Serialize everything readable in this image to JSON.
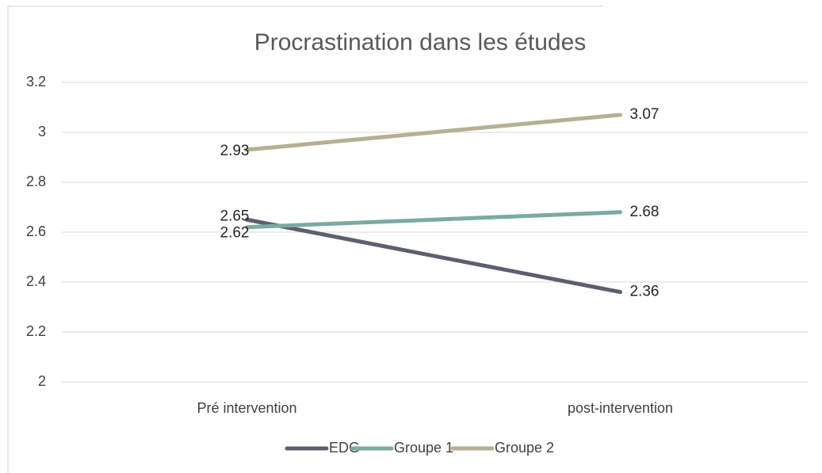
{
  "chart_data": {
    "type": "line",
    "title": "Procrastination dans les études",
    "categories": [
      "Pré intervention",
      "post-intervention"
    ],
    "series": [
      {
        "name": "EDG",
        "color": "#5d5f70",
        "values": [
          2.65,
          2.36
        ]
      },
      {
        "name": "Groupe 1",
        "color": "#7aaaa3",
        "values": [
          2.62,
          2.68
        ]
      },
      {
        "name": "Groupe 2",
        "color": "#b6af93",
        "values": [
          2.93,
          3.07
        ]
      }
    ],
    "ylim": [
      2,
      3.2
    ],
    "yticks": [
      2,
      2.2,
      2.4,
      2.6,
      2.8,
      3,
      3.2
    ],
    "grid": true,
    "legend": "bottom"
  }
}
